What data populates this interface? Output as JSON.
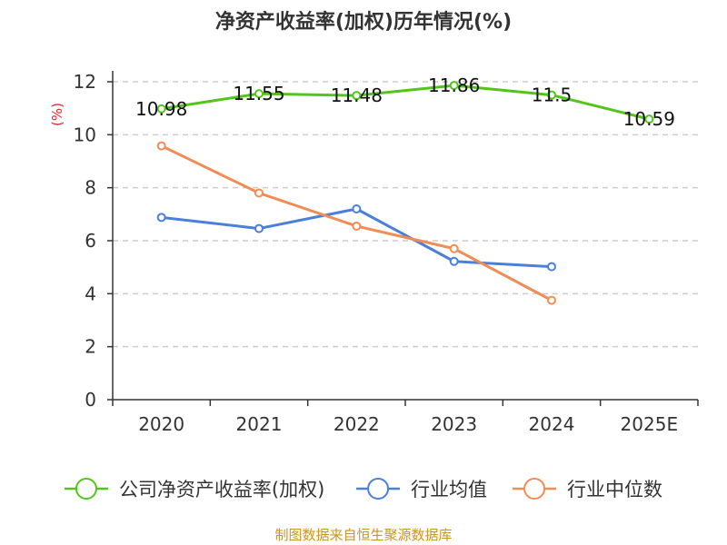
{
  "chart_data": {
    "type": "line",
    "title": "净资产收益率(加权)历年情况(%)",
    "ylabel": "(%)",
    "xlabel": "",
    "ylim": [
      0,
      12
    ],
    "yticks": [
      0,
      2,
      4,
      6,
      8,
      10,
      12
    ],
    "categories": [
      "2020",
      "2021",
      "2022",
      "2023",
      "2024",
      "2025E"
    ],
    "grid": "horizontal dashed",
    "legend_position": "bottom",
    "series": [
      {
        "name": "公司净资产收益率(加权)",
        "color": "#52c41a",
        "values": [
          10.98,
          11.55,
          11.48,
          11.86,
          11.5,
          10.59
        ],
        "labels": [
          "10.98",
          "11.55",
          "11.48",
          "11.86",
          "11.5",
          "10.59"
        ]
      },
      {
        "name": "行业均值",
        "color": "#4a7fdb",
        "values": [
          6.88,
          6.46,
          7.2,
          5.22,
          5.02,
          null
        ]
      },
      {
        "name": "行业中位数",
        "color": "#f28b54",
        "values": [
          9.58,
          7.8,
          6.55,
          5.7,
          3.75,
          null
        ]
      }
    ],
    "source": "制图数据来自恒生聚源数据库"
  }
}
